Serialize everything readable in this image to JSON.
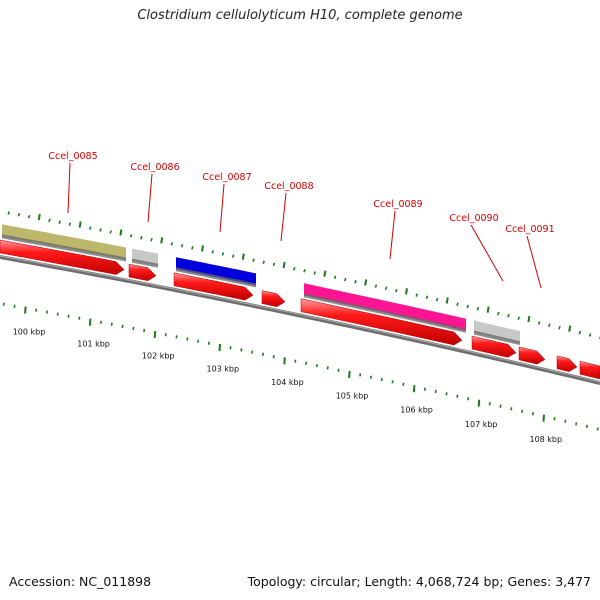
{
  "title": "Clostridium cellulolyticum H10, complete genome",
  "footer": {
    "accession": "Accession: NC_011898",
    "summary": "Topology: circular; Length: 4,068,724 bp; Genes: 3,477"
  },
  "colors": {
    "locus_label": "#d00000",
    "cds": "#ff0000",
    "tick": "#1a7a1a",
    "backbone": "#808080"
  },
  "scale_labels": [
    "100 kbp",
    "101 kbp",
    "102 kbp",
    "103 kbp",
    "104 kbp",
    "105 kbp",
    "106 kbp",
    "107 kbp",
    "108 kbp"
  ],
  "loci": [
    {
      "name": "Ccel_0085",
      "color": "#bdb76b"
    },
    {
      "name": "Ccel_0086",
      "color": "#c8c8c8"
    },
    {
      "name": "Ccel_0087",
      "color": "#0000dd"
    },
    {
      "name": "Ccel_0088",
      "color": null
    },
    {
      "name": "Ccel_0089",
      "color": "#ff1493"
    },
    {
      "name": "Ccel_0090",
      "color": "#c8c8c8"
    },
    {
      "name": "Ccel_0091",
      "color": null
    }
  ]
}
